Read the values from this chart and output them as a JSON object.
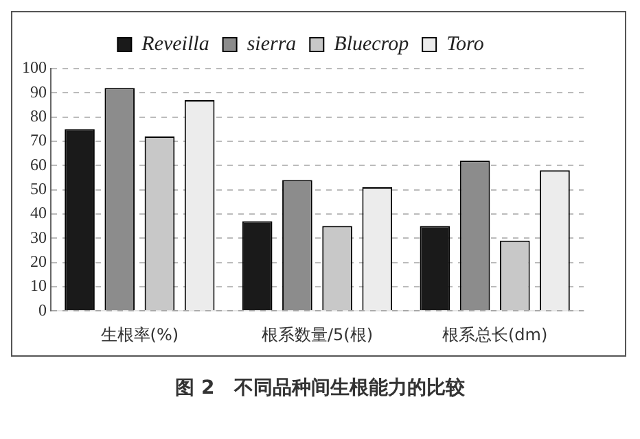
{
  "chart_data": {
    "type": "bar",
    "title": "图 2　不同品种间生根能力的比较",
    "categories": [
      "生根率(%)",
      "根系数量/5(根)",
      "根系总长(dm)"
    ],
    "series": [
      {
        "name": "Reveilla",
        "color": "#1a1a1a",
        "values": [
          75,
          37,
          35
        ]
      },
      {
        "name": "sierra",
        "color": "#8c8c8c",
        "values": [
          92,
          54,
          62
        ]
      },
      {
        "name": "Bluecrop",
        "color": "#c8c8c8",
        "values": [
          72,
          35,
          29
        ]
      },
      {
        "name": "Toro",
        "color": "#ececec",
        "values": [
          87,
          51,
          58
        ]
      }
    ],
    "ylim": [
      0,
      100
    ],
    "yticks": [
      0,
      10,
      20,
      30,
      40,
      50,
      60,
      70,
      80,
      90,
      100
    ],
    "grid": "y",
    "legend": "top"
  }
}
